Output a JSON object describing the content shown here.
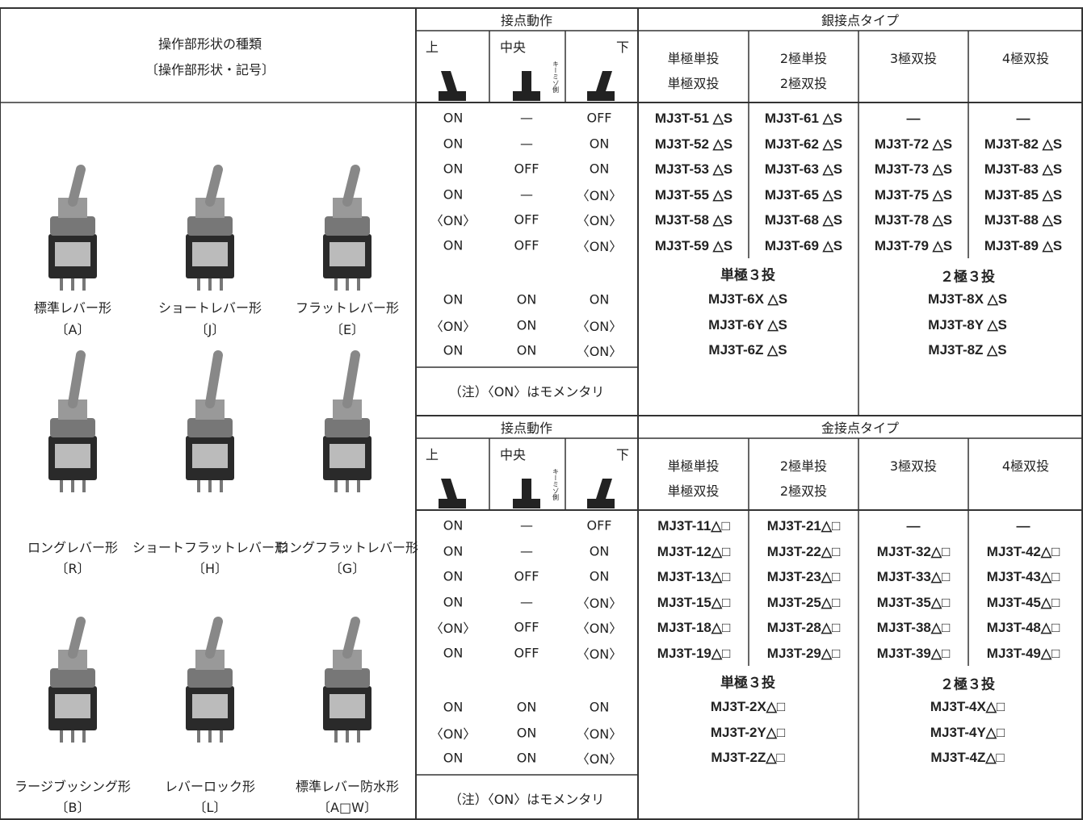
{
  "left": {
    "header": [
      "操作部形状の種類",
      "〔操作部形状・記号〕"
    ],
    "items": [
      {
        "name": "標準レバー形",
        "code": "〔A〕"
      },
      {
        "name": "ショートレバー形",
        "code": "〔J〕"
      },
      {
        "name": "フラットレバー形",
        "code": "〔E〕"
      },
      {
        "name": "ロングレバー形",
        "code": "〔R〕"
      },
      {
        "name": "ショートフラットレバー形",
        "code": "〔H〕"
      },
      {
        "name": "ロングフラットレバー形",
        "code": "〔G〕"
      },
      {
        "name": "ラージブッシング形",
        "code": "〔B〕"
      },
      {
        "name": "レバーロック形",
        "code": "〔L〕"
      },
      {
        "name": "標準レバー防水形",
        "code": "〔A□W〕"
      }
    ]
  },
  "sections": [
    {
      "contact_header": "接点動作",
      "positions": [
        "上",
        "中央",
        "下"
      ],
      "key_label": "キーミゾ側",
      "type_header": "銀接点タイプ",
      "poles": [
        [
          "単極単投",
          "単極双投"
        ],
        [
          "2極単投",
          "2極双投"
        ],
        [
          "3極双投"
        ],
        [
          "4極双投"
        ]
      ],
      "rows": [
        [
          "ON",
          "—",
          "OFF"
        ],
        [
          "ON",
          "—",
          "ON"
        ],
        [
          "ON",
          "OFF",
          "ON"
        ],
        [
          "ON",
          "—",
          "〈ON〉"
        ],
        [
          "〈ON〉",
          "OFF",
          "〈ON〉"
        ],
        [
          "ON",
          "OFF",
          "〈ON〉"
        ]
      ],
      "models": [
        [
          "MJ3T-51 △S",
          "MJ3T-61 △S",
          "—",
          "—"
        ],
        [
          "MJ3T-52 △S",
          "MJ3T-62 △S",
          "MJ3T-72 △S",
          "MJ3T-82 △S"
        ],
        [
          "MJ3T-53 △S",
          "MJ3T-63 △S",
          "MJ3T-73 △S",
          "MJ3T-83 △S"
        ],
        [
          "MJ3T-55 △S",
          "MJ3T-65 △S",
          "MJ3T-75 △S",
          "MJ3T-85 △S"
        ],
        [
          "MJ3T-58 △S",
          "MJ3T-68 △S",
          "MJ3T-78 △S",
          "MJ3T-88 △S"
        ],
        [
          "MJ3T-59 △S",
          "MJ3T-69 △S",
          "MJ3T-79 △S",
          "MJ3T-89 △S"
        ]
      ],
      "three_rows": [
        [
          "ON",
          "ON",
          "ON"
        ],
        [
          "〈ON〉",
          "ON",
          "〈ON〉"
        ],
        [
          "ON",
          "ON",
          "〈ON〉"
        ]
      ],
      "three_headers": [
        "単極３投",
        "２極３投"
      ],
      "three_models": [
        [
          "MJ3T-6X △S",
          "MJ3T-8X △S"
        ],
        [
          "MJ3T-6Y △S",
          "MJ3T-8Y △S"
        ],
        [
          "MJ3T-6Z △S",
          "MJ3T-8Z △S"
        ]
      ],
      "note": "（注）〈ON〉はモメンタリ"
    },
    {
      "contact_header": "接点動作",
      "positions": [
        "上",
        "中央",
        "下"
      ],
      "key_label": "キーミゾ側",
      "type_header": "金接点タイプ",
      "poles": [
        [
          "単極単投",
          "単極双投"
        ],
        [
          "2極単投",
          "2極双投"
        ],
        [
          "3極双投"
        ],
        [
          "4極双投"
        ]
      ],
      "rows": [
        [
          "ON",
          "—",
          "OFF"
        ],
        [
          "ON",
          "—",
          "ON"
        ],
        [
          "ON",
          "OFF",
          "ON"
        ],
        [
          "ON",
          "—",
          "〈ON〉"
        ],
        [
          "〈ON〉",
          "OFF",
          "〈ON〉"
        ],
        [
          "ON",
          "OFF",
          "〈ON〉"
        ]
      ],
      "models": [
        [
          "MJ3T-11△□",
          "MJ3T-21△□",
          "—",
          "—"
        ],
        [
          "MJ3T-12△□",
          "MJ3T-22△□",
          "MJ3T-32△□",
          "MJ3T-42△□"
        ],
        [
          "MJ3T-13△□",
          "MJ3T-23△□",
          "MJ3T-33△□",
          "MJ3T-43△□"
        ],
        [
          "MJ3T-15△□",
          "MJ3T-25△□",
          "MJ3T-35△□",
          "MJ3T-45△□"
        ],
        [
          "MJ3T-18△□",
          "MJ3T-28△□",
          "MJ3T-38△□",
          "MJ3T-48△□"
        ],
        [
          "MJ3T-19△□",
          "MJ3T-29△□",
          "MJ3T-39△□",
          "MJ3T-49△□"
        ]
      ],
      "three_rows": [
        [
          "ON",
          "ON",
          "ON"
        ],
        [
          "〈ON〉",
          "ON",
          "〈ON〉"
        ],
        [
          "ON",
          "ON",
          "〈ON〉"
        ]
      ],
      "three_headers": [
        "単極３投",
        "２極３投"
      ],
      "three_models": [
        [
          "MJ3T-2X△□",
          "MJ3T-4X△□"
        ],
        [
          "MJ3T-2Y△□",
          "MJ3T-4Y△□"
        ],
        [
          "MJ3T-2Z△□",
          "MJ3T-4Z△□"
        ]
      ],
      "note": "（注）〈ON〉はモメンタリ"
    }
  ]
}
